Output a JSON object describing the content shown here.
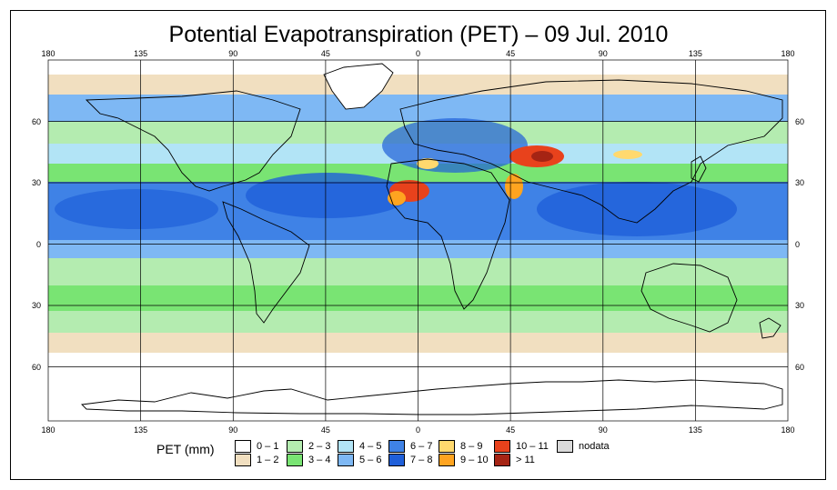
{
  "title": "Potential Evapotranspiration (PET) – 09 Jul. 2010",
  "axes": {
    "top_lon": [
      "180",
      "135",
      "90",
      "45",
      "0",
      "45",
      "90",
      "135",
      "180"
    ],
    "bottom_lon": [
      "180",
      "135",
      "90",
      "45",
      "0",
      "45",
      "90",
      "135",
      "180"
    ],
    "left_lat": [
      "60",
      "30",
      "0",
      "30",
      "60"
    ],
    "right_lat": [
      "60",
      "30",
      "0",
      "30",
      "60"
    ]
  },
  "legend": {
    "title": "PET (mm)",
    "items": [
      {
        "label": "0 – 1",
        "color": "#ffffff"
      },
      {
        "label": "1 – 2",
        "color": "#f1dfc0"
      },
      {
        "label": "2 – 3",
        "color": "#b4ecb0"
      },
      {
        "label": "3 – 4",
        "color": "#79e473"
      },
      {
        "label": "4 – 5",
        "color": "#b2e4f6"
      },
      {
        "label": "5 – 6",
        "color": "#7eb8f4"
      },
      {
        "label": "6 – 7",
        "color": "#3f82e6"
      },
      {
        "label": "7 – 8",
        "color": "#1f5fd9"
      },
      {
        "label": "8 – 9",
        "color": "#ffd96e"
      },
      {
        "label": "9 – 10",
        "color": "#ffa420"
      },
      {
        "label": "10 – 11",
        "color": "#e8421c"
      },
      {
        "label": "> 11",
        "color": "#a52414"
      },
      {
        "label": "nodata",
        "color": "#d9d9d9"
      }
    ]
  },
  "colors": {
    "land_outline": "#000000",
    "grid": "#000000",
    "antarctica": "#ffffff"
  }
}
